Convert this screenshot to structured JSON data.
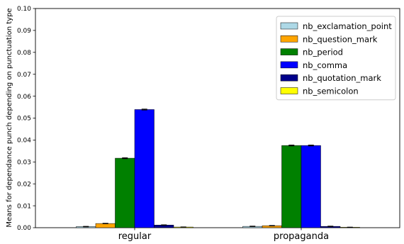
{
  "chart_data": {
    "type": "bar",
    "title": "",
    "xlabel": "",
    "ylabel": "Means for dependance punch depending on punctuation type",
    "categories": [
      "regular",
      "propaganda"
    ],
    "ylim": [
      0,
      0.1
    ],
    "yticks": [
      "0.00",
      "0.01",
      "0.02",
      "0.03",
      "0.04",
      "0.05",
      "0.06",
      "0.07",
      "0.08",
      "0.09",
      "0.10"
    ],
    "grid": false,
    "legend_position": "top-right",
    "error_bars": true,
    "series": [
      {
        "name": "nb_exclamation_point",
        "color": "#add8e6",
        "values": [
          0.0005,
          0.0006
        ],
        "errors": [
          0.0001,
          0.0001
        ]
      },
      {
        "name": "nb_question_mark",
        "color": "#ffa500",
        "values": [
          0.0019,
          0.0009
        ],
        "errors": [
          0.0001,
          0.0001
        ]
      },
      {
        "name": "nb_period",
        "color": "#008000",
        "values": [
          0.0317,
          0.0375
        ],
        "errors": [
          0.0002,
          0.0002
        ]
      },
      {
        "name": "nb_comma",
        "color": "#0000ff",
        "values": [
          0.0539,
          0.0375
        ],
        "errors": [
          0.0002,
          0.0002
        ]
      },
      {
        "name": "nb_quotation_mark",
        "color": "#00008b",
        "values": [
          0.0012,
          0.0006
        ],
        "errors": [
          0.0001,
          0.0001
        ]
      },
      {
        "name": "nb_semicolon",
        "color": "#ffff00",
        "values": [
          0.0003,
          0.0002
        ],
        "errors": [
          5e-05,
          5e-05
        ]
      }
    ]
  }
}
